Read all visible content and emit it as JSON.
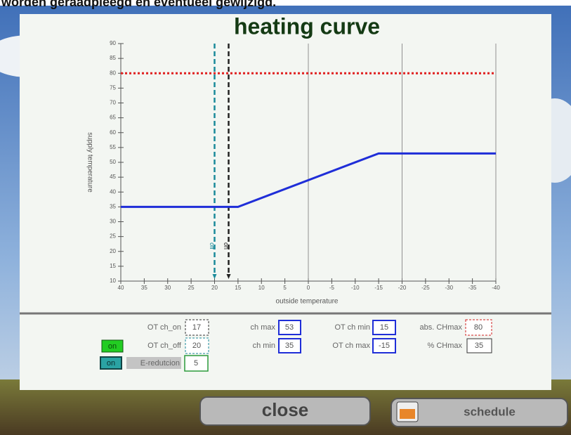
{
  "header": {
    "caption": "worden geraadpleegd en eventueel gewijzigd."
  },
  "chart_data": {
    "type": "line",
    "title": "heating curve",
    "x_label": "outside temperature",
    "y_label": "supply temperature",
    "xlim": [
      40,
      -40
    ],
    "ylim": [
      10,
      90
    ],
    "xticks": [
      40,
      35,
      30,
      25,
      20,
      15,
      10,
      5,
      0,
      -5,
      -10,
      -15,
      -20,
      -25,
      -30,
      -35,
      -40
    ],
    "yticks": [
      10,
      15,
      20,
      25,
      30,
      35,
      40,
      45,
      50,
      55,
      60,
      65,
      70,
      75,
      80,
      85,
      90
    ],
    "series": [
      {
        "color": "#1f2ed8",
        "x": [
          40,
          15,
          -15,
          -40
        ],
        "values": [
          35,
          35,
          53,
          53
        ]
      }
    ],
    "hlines": [
      {
        "value": 80,
        "color": "#e02020"
      }
    ],
    "vlines": [
      {
        "value": 20,
        "label": "off",
        "color": "#1b8a9a"
      },
      {
        "value": 17,
        "label": "on",
        "color": "#222222"
      }
    ]
  },
  "controls": {
    "ot_ch_on": {
      "label": "OT ch_on",
      "value": 17
    },
    "ot_ch_off": {
      "label": "OT ch_off",
      "value": 20
    },
    "e_reduction": {
      "label": "E-redutcion",
      "value": 5
    },
    "ch_max": {
      "label": "ch max",
      "value": 53
    },
    "ch_min": {
      "label": "ch min",
      "value": 35
    },
    "ot_ch_min": {
      "label": "OT ch min",
      "value": 15
    },
    "ot_ch_max": {
      "label": "OT ch max",
      "value": -15
    },
    "abs_chmax": {
      "label": "abs. CHmax",
      "value": 80
    },
    "pct_chmax": {
      "label": "% CHmax",
      "value": 35
    },
    "toggle_off": "on",
    "toggle_e": "on"
  },
  "buttons": {
    "close": "close",
    "schedule": "schedule"
  }
}
